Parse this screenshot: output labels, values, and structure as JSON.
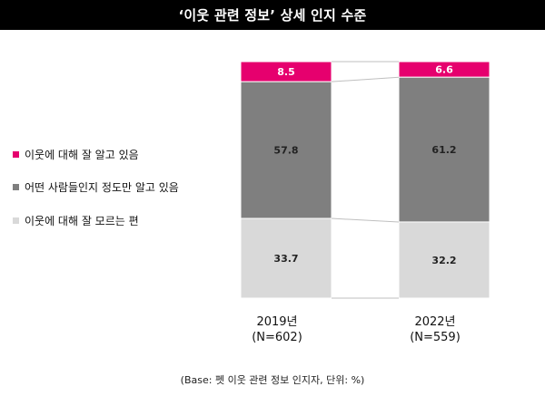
{
  "title": "‘이웃 관련 정보’ 상세 인지 수준",
  "footnote": "(Base: 펫 이웃 관련 정보 인지자, 단위: %)",
  "legend": [
    {
      "label": "이웃에 대해 잘 알고 있음",
      "color": "#e6006e"
    },
    {
      "label": "어떤 사람들인지 정도만 알고 있음",
      "color": "#7f7f7f"
    },
    {
      "label": "이웃에 대해 잘 모르는 편",
      "color": "#d9d9d9"
    }
  ],
  "chart_data": {
    "type": "bar",
    "stacked": true,
    "normalized": true,
    "title": "‘이웃 관련 정보’ 상세 인지 수준",
    "categories": [
      "2019년",
      "2022년"
    ],
    "category_sublabels": [
      "(N=602)",
      "(N=559)"
    ],
    "series": [
      {
        "name": "이웃에 대해 잘 알고 있음",
        "color": "#e6006e",
        "values": [
          8.5,
          6.6
        ]
      },
      {
        "name": "어떤 사람들인지 정도만 알고 있음",
        "color": "#7f7f7f",
        "values": [
          57.8,
          61.2
        ]
      },
      {
        "name": "이웃에 대해 잘 모르는 편",
        "color": "#d9d9d9",
        "values": [
          33.7,
          32.2
        ]
      }
    ],
    "connector_lines": true,
    "unit": "%"
  }
}
